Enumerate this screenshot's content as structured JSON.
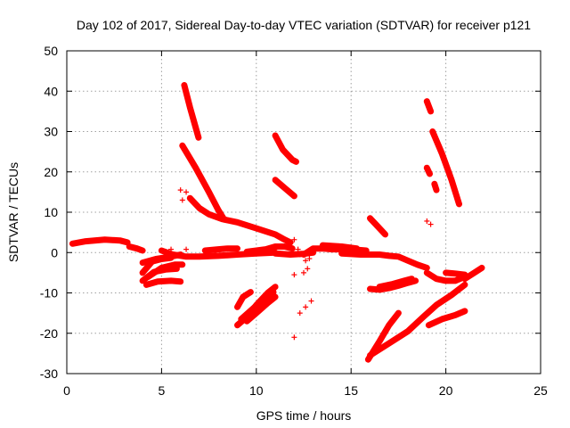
{
  "chart_data": {
    "type": "scatter",
    "title": "Day 102 of 2017, Sidereal Day-to-day VTEC variation (SDTVAR) for receiver p121",
    "xlabel": "GPS time / hours",
    "ylabel": "SDTVAR / TECUs",
    "xlim": [
      0,
      25
    ],
    "ylim": [
      -30,
      50
    ],
    "xticks": [
      0,
      5,
      10,
      15,
      20,
      25
    ],
    "yticks": [
      -30,
      -20,
      -10,
      0,
      10,
      20,
      30,
      40,
      50
    ],
    "grid": true,
    "legend": "none",
    "marker": "plus",
    "color": "#ff0000",
    "tracks": [
      {
        "points": [
          [
            0.3,
            2.2
          ],
          [
            1.0,
            2.8
          ],
          [
            2.0,
            3.2
          ],
          [
            2.8,
            3.0
          ],
          [
            3.2,
            2.5
          ]
        ]
      },
      {
        "points": [
          [
            3.3,
            1.5
          ],
          [
            3.7,
            1.0
          ],
          [
            4.0,
            0.5
          ]
        ]
      },
      {
        "points": [
          [
            4.0,
            -5.0
          ],
          [
            4.5,
            -2.2
          ],
          [
            5.0,
            -1.6
          ],
          [
            5.5,
            -1.3
          ]
        ]
      },
      {
        "points": [
          [
            4.0,
            -7.0
          ],
          [
            4.6,
            -4.8
          ],
          [
            5.2,
            -4.2
          ],
          [
            5.8,
            -4.0
          ]
        ]
      },
      {
        "points": [
          [
            4.2,
            -8.0
          ],
          [
            4.8,
            -7.2
          ],
          [
            5.5,
            -7.0
          ],
          [
            6.0,
            -7.2
          ]
        ]
      },
      {
        "points": [
          [
            4.0,
            -2.5
          ],
          [
            4.7,
            -1.6
          ],
          [
            5.5,
            -1.0
          ],
          [
            6.0,
            -0.5
          ]
        ]
      },
      {
        "points": [
          [
            4.3,
            -6.0
          ],
          [
            5.0,
            -3.8
          ],
          [
            5.7,
            -3.0
          ],
          [
            6.1,
            -3.0
          ]
        ]
      },
      {
        "points": [
          [
            5.0,
            0.5
          ],
          [
            5.6,
            -0.5
          ],
          [
            6.3,
            -1.0
          ],
          [
            7.0,
            -1.0
          ],
          [
            8.0,
            -0.8
          ],
          [
            9.0,
            -0.5
          ],
          [
            10.0,
            -0.2
          ],
          [
            11.0,
            0.0
          ]
        ]
      },
      {
        "points": [
          [
            7.3,
            0.5
          ],
          [
            8.0,
            0.8
          ],
          [
            8.5,
            1.0
          ],
          [
            9.0,
            1.0
          ]
        ]
      },
      {
        "points": [
          [
            9.5,
            0.2
          ],
          [
            10.5,
            0.8
          ],
          [
            11.0,
            1.5
          ],
          [
            11.5,
            1.5
          ],
          [
            11.9,
            1.0
          ]
        ]
      },
      {
        "points": [
          [
            11.0,
            -0.2
          ],
          [
            11.8,
            -0.5
          ],
          [
            12.5,
            -0.3
          ],
          [
            13.0,
            0.0
          ]
        ]
      },
      {
        "points": [
          [
            6.2,
            41.5
          ],
          [
            6.5,
            36.0
          ],
          [
            6.8,
            31.0
          ],
          [
            6.95,
            28.5
          ]
        ]
      },
      {
        "points": [
          [
            6.1,
            26.5
          ],
          [
            6.8,
            21.0
          ],
          [
            7.5,
            15.0
          ],
          [
            8.0,
            10.5
          ],
          [
            8.3,
            8.2
          ]
        ]
      },
      {
        "points": [
          [
            6.5,
            13.5
          ],
          [
            7.0,
            11.0
          ],
          [
            7.5,
            9.5
          ],
          [
            8.2,
            8.3
          ],
          [
            9.0,
            7.5
          ],
          [
            10.0,
            6.0
          ],
          [
            11.0,
            4.5
          ],
          [
            11.5,
            3.2
          ],
          [
            11.8,
            2.5
          ]
        ]
      },
      {
        "points": [
          [
            11.0,
            29.0
          ],
          [
            11.4,
            25.5
          ],
          [
            11.9,
            23.0
          ],
          [
            12.1,
            22.5
          ]
        ]
      },
      {
        "points": [
          [
            11.0,
            18.0
          ],
          [
            11.5,
            16.0
          ],
          [
            12.0,
            14.0
          ]
        ]
      },
      {
        "points": [
          [
            9.0,
            -13.5
          ],
          [
            9.3,
            -11.0
          ],
          [
            9.7,
            -9.8
          ]
        ]
      },
      {
        "points": [
          [
            9.0,
            -18.0
          ],
          [
            9.5,
            -16.0
          ],
          [
            10.0,
            -13.0
          ],
          [
            10.6,
            -10.0
          ],
          [
            11.0,
            -8.5
          ]
        ]
      },
      {
        "points": [
          [
            9.2,
            -16.5
          ],
          [
            9.8,
            -14.0
          ],
          [
            10.4,
            -11.5
          ],
          [
            10.9,
            -9.8
          ]
        ]
      },
      {
        "points": [
          [
            9.5,
            -17.0
          ],
          [
            10.0,
            -15.0
          ],
          [
            10.6,
            -12.5
          ],
          [
            11.0,
            -11.0
          ]
        ]
      },
      {
        "points": [
          [
            12.5,
            -0.5
          ],
          [
            13.0,
            1.0
          ],
          [
            13.5,
            1.0
          ],
          [
            14.0,
            0.8
          ],
          [
            15.0,
            0.8
          ],
          [
            15.8,
            0.5
          ]
        ]
      },
      {
        "points": [
          [
            13.5,
            1.8
          ],
          [
            14.5,
            1.5
          ],
          [
            15.3,
            1.0
          ]
        ]
      },
      {
        "points": [
          [
            14.5,
            -0.2
          ],
          [
            15.5,
            -0.5
          ],
          [
            16.5,
            -0.5
          ],
          [
            17.0,
            -0.8
          ],
          [
            17.5,
            -1.0
          ],
          [
            18.0,
            -2.0
          ],
          [
            18.5,
            -3.0
          ],
          [
            19.0,
            -3.8
          ]
        ]
      },
      {
        "points": [
          [
            16.0,
            8.5
          ],
          [
            16.4,
            6.5
          ],
          [
            16.8,
            4.5
          ]
        ]
      },
      {
        "points": [
          [
            16.0,
            -9.0
          ],
          [
            16.5,
            -9.2
          ],
          [
            17.0,
            -8.8
          ],
          [
            17.5,
            -8.2
          ],
          [
            18.0,
            -7.5
          ],
          [
            18.4,
            -7.0
          ]
        ]
      },
      {
        "points": [
          [
            16.5,
            -8.5
          ],
          [
            17.2,
            -7.8
          ],
          [
            17.8,
            -7.0
          ],
          [
            18.2,
            -6.5
          ]
        ]
      },
      {
        "points": [
          [
            15.9,
            -26.5
          ],
          [
            16.5,
            -22.0
          ],
          [
            17.0,
            -18.0
          ],
          [
            17.5,
            -15.0
          ]
        ]
      },
      {
        "points": [
          [
            16.0,
            -25.5
          ],
          [
            17.0,
            -22.5
          ],
          [
            18.0,
            -19.5
          ],
          [
            18.8,
            -16.0
          ],
          [
            19.5,
            -13.0
          ],
          [
            20.3,
            -10.5
          ],
          [
            21.0,
            -8.0
          ]
        ]
      },
      {
        "points": [
          [
            19.1,
            -18.0
          ],
          [
            19.8,
            -16.5
          ],
          [
            20.5,
            -15.5
          ],
          [
            21.0,
            -14.5
          ]
        ]
      },
      {
        "points": [
          [
            19.0,
            -5.0
          ],
          [
            19.5,
            -6.5
          ],
          [
            20.0,
            -7.0
          ],
          [
            20.5,
            -7.0
          ],
          [
            21.0,
            -6.0
          ]
        ]
      },
      {
        "points": [
          [
            20.0,
            -5.0
          ],
          [
            20.5,
            -5.2
          ],
          [
            21.0,
            -5.5
          ]
        ]
      },
      {
        "points": [
          [
            21.0,
            -6.5
          ],
          [
            21.5,
            -5.0
          ],
          [
            21.9,
            -3.8
          ]
        ]
      },
      {
        "points": [
          [
            19.3,
            30.0
          ],
          [
            19.8,
            24.5
          ],
          [
            20.3,
            18.0
          ],
          [
            20.7,
            12.0
          ]
        ]
      },
      {
        "points": [
          [
            19.0,
            37.5
          ],
          [
            19.2,
            35.0
          ]
        ]
      },
      {
        "points": [
          [
            19.0,
            21.0
          ],
          [
            19.15,
            19.5
          ]
        ]
      },
      {
        "points": [
          [
            19.4,
            17.0
          ],
          [
            19.5,
            15.5
          ]
        ]
      }
    ],
    "scatter_points": [
      [
        6.0,
        15.5
      ],
      [
        6.1,
        13.0
      ],
      [
        6.3,
        15.0
      ],
      [
        6.3,
        0.8
      ],
      [
        5.5,
        0.8
      ],
      [
        12.0,
        3.2
      ],
      [
        12.2,
        0.8
      ],
      [
        12.3,
        -0.5
      ],
      [
        12.0,
        -5.5
      ],
      [
        12.5,
        -5.0
      ],
      [
        12.7,
        -4.0
      ],
      [
        12.6,
        -2.0
      ],
      [
        12.8,
        -1.5
      ],
      [
        12.3,
        -15.0
      ],
      [
        12.6,
        -13.5
      ],
      [
        12.9,
        -12.0
      ],
      [
        12.0,
        -21.0
      ],
      [
        19.0,
        7.8
      ],
      [
        19.2,
        7.0
      ],
      [
        15.5,
        -0.5
      ],
      [
        13.8,
        1.5
      ]
    ]
  }
}
